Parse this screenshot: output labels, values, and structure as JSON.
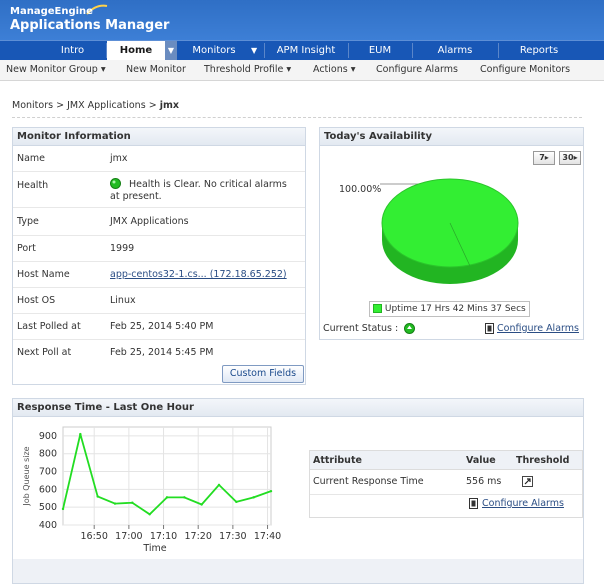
{
  "brand": {
    "company": "ManageEngine",
    "product": "Applications Manager"
  },
  "nav": {
    "tabs": [
      {
        "label": "Intro"
      },
      {
        "label": "Home"
      },
      {
        "label": "Monitors"
      },
      {
        "label": "APM Insight"
      },
      {
        "label": "EUM"
      },
      {
        "label": "Alarms"
      },
      {
        "label": "Reports"
      }
    ]
  },
  "subnav": {
    "items": [
      {
        "label": "New Monitor Group ▾"
      },
      {
        "label": "New Monitor"
      },
      {
        "label": "Threshold Profile ▾"
      },
      {
        "label": "Actions ▾"
      },
      {
        "label": "Configure Alarms"
      },
      {
        "label": "Configure Monitors"
      }
    ]
  },
  "breadcrumb": {
    "part1": "Monitors",
    "sep": ">",
    "part2": "JMX Applications",
    "current": "jmx"
  },
  "monitor_info": {
    "title": "Monitor Information",
    "rows": [
      {
        "label": "Name",
        "value": "jmx"
      },
      {
        "label": "Health",
        "value": "Health is Clear. No critical alarms",
        "value2": "at present."
      },
      {
        "label": "Type",
        "value": "JMX Applications"
      },
      {
        "label": "Port",
        "value": "1999"
      },
      {
        "label": "Host Name",
        "value": "app-centos32-1.cs... (172.18.65.252)"
      },
      {
        "label": "Host OS",
        "value": "Linux"
      },
      {
        "label": "Last Polled at",
        "value": "Feb 25, 2014 5:40 PM"
      },
      {
        "label": "Next Poll at",
        "value": "Feb 25, 2014 5:45 PM"
      }
    ],
    "custom_fields_button": "Custom Fields",
    "health_color": "#22bb22"
  },
  "availability": {
    "title": "Today's Availability",
    "btn7": "7",
    "btn30": "30",
    "percent_label": "100.00%",
    "legend": "Uptime 17 Hrs 42 Mins 37 Secs",
    "uptime_percent": 100,
    "current_status_label": "Current Status :",
    "configure_alarms": "Configure Alarms",
    "colors": {
      "uptime": "#33ee33",
      "uptime_dark": "#22b522"
    }
  },
  "response": {
    "title": "Response Time - Last One Hour",
    "table": {
      "headers": [
        "Attribute",
        "Value",
        "Threshold"
      ],
      "row": {
        "attribute": "Current Response Time",
        "value": "556 ms"
      }
    },
    "configure_alarms": "Configure Alarms"
  },
  "chart_data": {
    "type": "line",
    "ylabel": "Job Queue size",
    "xlabel": "Time",
    "ylim": [
      400,
      950
    ],
    "yticks": [
      400,
      500,
      600,
      700,
      800,
      900
    ],
    "x_tick_labels": [
      "16:50",
      "17:00",
      "17:10",
      "17:20",
      "17:30",
      "17:40"
    ],
    "x": [
      "16:41",
      "16:46",
      "16:51",
      "16:56",
      "17:01",
      "17:06",
      "17:11",
      "17:16",
      "17:21",
      "17:26",
      "17:31",
      "17:36",
      "17:41"
    ],
    "values": [
      490,
      910,
      560,
      520,
      525,
      460,
      555,
      555,
      515,
      625,
      530,
      555,
      590
    ],
    "series_color": "#22dd22",
    "grid": true
  }
}
